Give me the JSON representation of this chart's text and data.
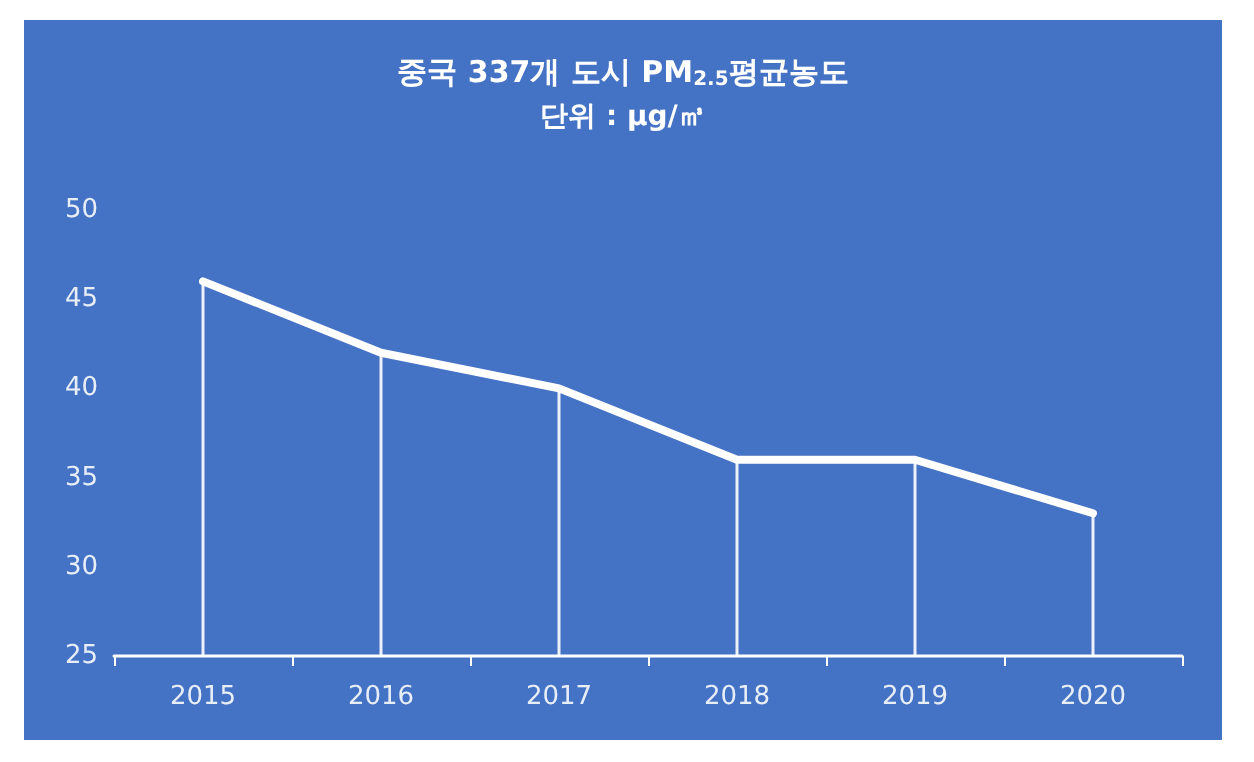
{
  "chart_data": {
    "type": "line",
    "title": "중국 337개 도시 PM$_{2.5}$평균농도",
    "subtitle": "단위 : μg/㎥",
    "categories": [
      "2015",
      "2016",
      "2017",
      "2018",
      "2019",
      "2020"
    ],
    "series": [
      {
        "color": "#ffffff",
        "values": [
          46,
          42,
          40,
          36,
          36,
          33
        ]
      },
      {
        "type": "bar",
        "color": "#ffffff",
        "values": [
          46,
          42,
          40,
          36,
          36,
          33
        ]
      }
    ],
    "ylim": [
      25,
      50
    ],
    "yticks": [
      25,
      30,
      35,
      40,
      45,
      50
    ],
    "grid": false,
    "marker": "none",
    "line_style": "solid"
  }
}
